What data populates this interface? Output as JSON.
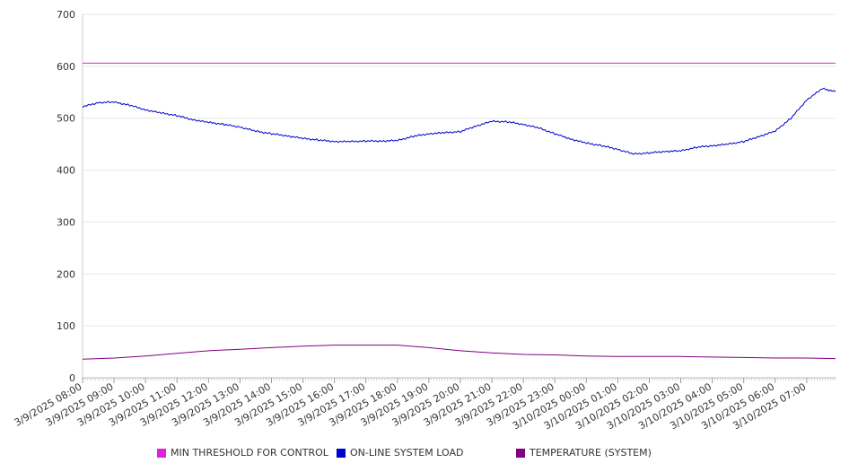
{
  "chart_data": {
    "type": "line",
    "title": "",
    "xlabel": "",
    "ylabel": "",
    "ylim": [
      0,
      700
    ],
    "yticks": [
      0,
      100,
      200,
      300,
      400,
      500,
      600,
      700
    ],
    "x_ticks": [
      "3/9/2025 08:00",
      "3/9/2025 09:00",
      "3/9/2025 10:00",
      "3/9/2025 11:00",
      "3/9/2025 12:00",
      "3/9/2025 13:00",
      "3/9/2025 14:00",
      "3/9/2025 15:00",
      "3/9/2025 16:00",
      "3/9/2025 17:00",
      "3/9/2025 18:00",
      "3/9/2025 19:00",
      "3/9/2025 20:00",
      "3/9/2025 21:00",
      "3/9/2025 22:00",
      "3/9/2025 23:00",
      "3/10/2025 00:00",
      "3/10/2025 01:00",
      "3/10/2025 02:00",
      "3/10/2025 03:00",
      "3/10/2025 04:00",
      "3/10/2025 05:00",
      "3/10/2025 06:00",
      "3/10/2025 07:00"
    ],
    "x_start": "3/9/2025 08:00",
    "x_end": "3/10/2025 07:55",
    "legend_position": "bottom",
    "grid": true,
    "series": [
      {
        "name": "MIN THRESHOLD FOR CONTROL",
        "color": "#e020e0",
        "x": [
          "3/9/2025 08:00",
          "3/10/2025 07:55"
        ],
        "values": [
          606,
          606
        ]
      },
      {
        "name": "ON-LINE SYSTEM LOAD",
        "color": "#0000cc",
        "x": [
          "3/9/2025 08:00",
          "3/9/2025 08:30",
          "3/9/2025 09:00",
          "3/9/2025 09:30",
          "3/9/2025 10:00",
          "3/9/2025 10:30",
          "3/9/2025 11:00",
          "3/9/2025 11:30",
          "3/9/2025 12:00",
          "3/9/2025 12:30",
          "3/9/2025 13:00",
          "3/9/2025 13:30",
          "3/9/2025 14:00",
          "3/9/2025 14:30",
          "3/9/2025 15:00",
          "3/9/2025 15:30",
          "3/9/2025 16:00",
          "3/9/2025 16:30",
          "3/9/2025 17:00",
          "3/9/2025 17:30",
          "3/9/2025 18:00",
          "3/9/2025 18:30",
          "3/9/2025 19:00",
          "3/9/2025 19:30",
          "3/9/2025 20:00",
          "3/9/2025 20:30",
          "3/9/2025 21:00",
          "3/9/2025 21:30",
          "3/9/2025 22:00",
          "3/9/2025 22:30",
          "3/9/2025 23:00",
          "3/9/2025 23:30",
          "3/10/2025 00:00",
          "3/10/2025 00:30",
          "3/10/2025 01:00",
          "3/10/2025 01:30",
          "3/10/2025 02:00",
          "3/10/2025 02:30",
          "3/10/2025 03:00",
          "3/10/2025 03:30",
          "3/10/2025 04:00",
          "3/10/2025 04:30",
          "3/10/2025 05:00",
          "3/10/2025 05:30",
          "3/10/2025 06:00",
          "3/10/2025 06:30",
          "3/10/2025 07:00",
          "3/10/2025 07:30",
          "3/10/2025 07:55"
        ],
        "values": [
          522,
          530,
          531,
          525,
          516,
          510,
          505,
          497,
          492,
          488,
          483,
          475,
          470,
          466,
          461,
          458,
          455,
          455,
          456,
          456,
          457,
          465,
          470,
          472,
          474,
          485,
          494,
          493,
          488,
          481,
          470,
          460,
          452,
          447,
          440,
          431,
          433,
          436,
          437,
          444,
          447,
          450,
          455,
          465,
          475,
          500,
          535,
          557,
          551
        ]
      },
      {
        "name": "TEMPERATURE (SYSTEM)",
        "color": "#800080",
        "x": [
          "3/9/2025 08:00",
          "3/9/2025 09:00",
          "3/9/2025 10:00",
          "3/9/2025 11:00",
          "3/9/2025 12:00",
          "3/9/2025 13:00",
          "3/9/2025 14:00",
          "3/9/2025 15:00",
          "3/9/2025 16:00",
          "3/9/2025 17:00",
          "3/9/2025 18:00",
          "3/9/2025 19:00",
          "3/9/2025 20:00",
          "3/9/2025 21:00",
          "3/9/2025 22:00",
          "3/9/2025 23:00",
          "3/10/2025 00:00",
          "3/10/2025 01:00",
          "3/10/2025 02:00",
          "3/10/2025 03:00",
          "3/10/2025 04:00",
          "3/10/2025 05:00",
          "3/10/2025 06:00",
          "3/10/2025 07:00",
          "3/10/2025 07:55"
        ],
        "values": [
          36,
          38,
          42,
          47,
          52,
          55,
          58,
          61,
          63,
          63,
          63,
          58,
          52,
          48,
          45,
          44,
          42,
          41,
          41,
          41,
          40,
          39,
          38,
          38,
          37
        ]
      }
    ]
  }
}
